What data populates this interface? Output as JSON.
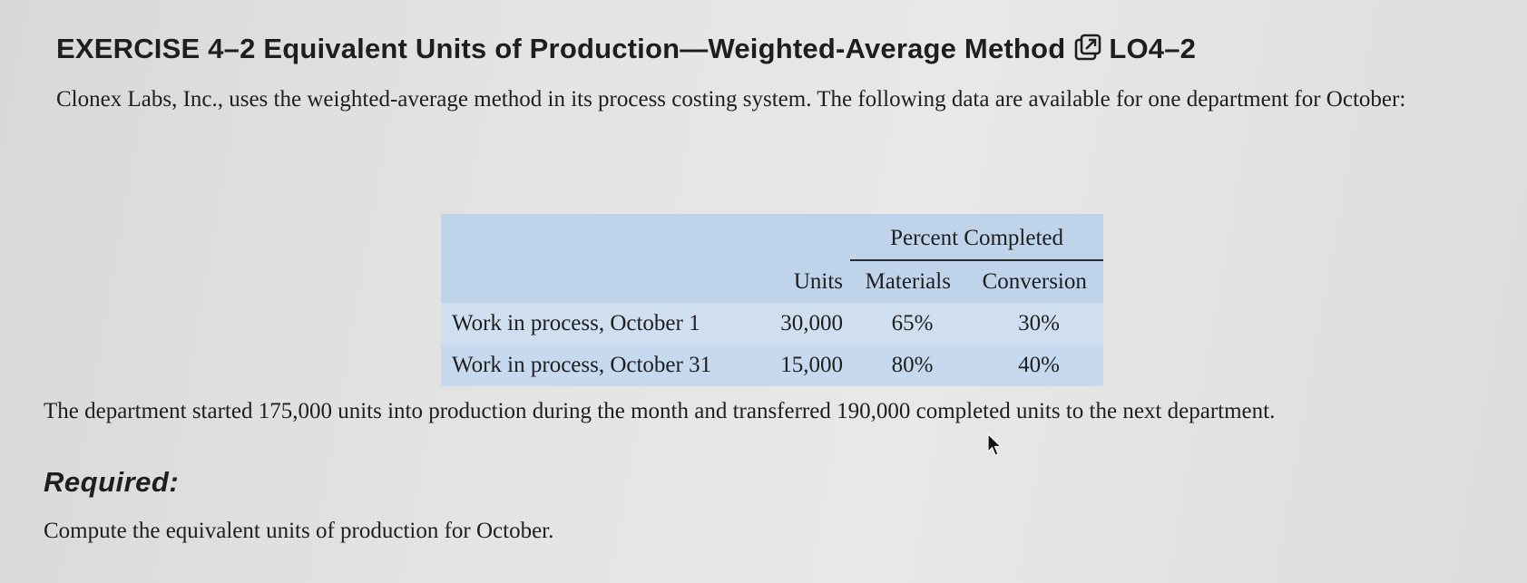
{
  "exercise": {
    "title": "EXERCISE 4–2 Equivalent Units of Production—Weighted-Average Method",
    "learning_objective": "LO4–2",
    "icon": "external-link-icon"
  },
  "intro_text": "Clonex Labs, Inc., uses the weighted-average method in its process costing system. The following data are available for one department for October:",
  "table": {
    "group_header": "Percent Completed",
    "columns": [
      "",
      "Units",
      "Materials",
      "Conversion"
    ],
    "rows": [
      {
        "label": "Work in process, October 1",
        "units": "30,000",
        "materials": "65%",
        "conversion": "30%"
      },
      {
        "label": "Work in process, October 31",
        "units": "15,000",
        "materials": "80%",
        "conversion": "40%"
      }
    ],
    "background_color": "#bfd4ea"
  },
  "body_text": "The department started 175,000 units into production during the month and transferred 190,000 completed units to the next department.",
  "required_heading": "Required:",
  "task_text": "Compute the equivalent units of production for October.",
  "cursor_icon": "mouse-pointer-icon"
}
